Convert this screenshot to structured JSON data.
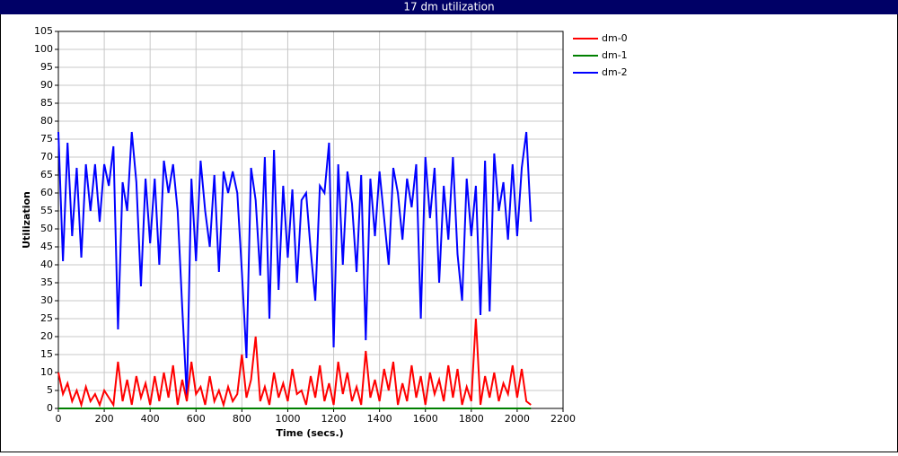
{
  "chart_data": {
    "type": "line",
    "title": "17 dm utilization",
    "x_label": "Time (secs.)",
    "y_label": "Utilization",
    "x": [
      0,
      20,
      40,
      60,
      80,
      100,
      120,
      140,
      160,
      180,
      200,
      220,
      240,
      260,
      280,
      300,
      320,
      340,
      360,
      380,
      400,
      420,
      440,
      460,
      480,
      500,
      520,
      540,
      560,
      580,
      600,
      620,
      640,
      660,
      680,
      700,
      720,
      740,
      760,
      780,
      800,
      820,
      840,
      860,
      880,
      900,
      920,
      940,
      960,
      980,
      1000,
      1020,
      1040,
      1060,
      1080,
      1100,
      1120,
      1140,
      1160,
      1180,
      1200,
      1220,
      1240,
      1260,
      1280,
      1300,
      1320,
      1340,
      1360,
      1380,
      1400,
      1420,
      1440,
      1460,
      1480,
      1500,
      1520,
      1540,
      1560,
      1580,
      1600,
      1620,
      1640,
      1660,
      1680,
      1700,
      1720,
      1740,
      1760,
      1780,
      1800,
      1820,
      1840,
      1860,
      1880,
      1900,
      1920,
      1940,
      1960,
      1980,
      2000,
      2020,
      2040,
      2060
    ],
    "series": [
      {
        "name": "dm-0",
        "color": "#ff0000",
        "values": [
          10,
          4,
          7,
          2,
          5,
          1,
          6,
          2,
          4,
          1,
          5,
          3,
          1,
          13,
          2,
          8,
          1,
          9,
          3,
          7,
          1,
          9,
          2,
          10,
          3,
          12,
          1,
          8,
          2,
          13,
          4,
          6,
          1,
          9,
          2,
          5,
          1,
          6,
          2,
          4,
          15,
          3,
          8,
          20,
          2,
          6,
          1,
          10,
          3,
          7,
          2,
          11,
          4,
          5,
          1,
          9,
          3,
          12,
          2,
          7,
          1,
          13,
          4,
          10,
          2,
          6,
          1,
          16,
          3,
          8,
          2,
          11,
          5,
          13,
          1,
          7,
          2,
          12,
          3,
          9,
          1,
          10,
          4,
          8,
          2,
          12,
          3,
          11,
          1,
          6,
          2,
          25,
          1,
          9,
          3,
          10,
          2,
          7,
          4,
          12,
          3,
          11,
          2,
          1
        ]
      },
      {
        "name": "dm-1",
        "color": "#008000",
        "values": [
          0,
          0,
          0,
          0,
          0,
          0,
          0,
          0,
          0,
          0,
          0,
          0,
          0,
          0,
          0,
          0,
          0,
          0,
          0,
          0,
          0,
          0,
          0,
          0,
          0,
          0,
          0,
          0,
          0,
          0,
          0,
          0,
          0,
          0,
          0,
          0,
          0,
          0,
          0,
          0,
          0,
          0,
          0,
          0,
          0,
          0,
          0,
          0,
          0,
          0,
          0,
          0,
          0,
          0,
          0,
          0,
          0,
          0,
          0,
          0,
          0,
          0,
          0,
          0,
          0,
          0,
          0,
          0,
          0,
          0,
          0,
          0,
          0,
          0,
          0,
          0,
          0,
          0,
          0,
          0,
          0,
          0,
          0,
          0,
          0,
          0,
          0,
          0,
          0,
          0,
          0,
          0,
          0,
          0,
          0,
          0,
          0,
          0,
          0,
          0,
          0,
          0,
          0,
          0
        ]
      },
      {
        "name": "dm-2",
        "color": "#0000ff",
        "values": [
          77,
          41,
          74,
          48,
          67,
          42,
          68,
          55,
          68,
          52,
          68,
          62,
          73,
          22,
          63,
          55,
          77,
          63,
          34,
          64,
          46,
          64,
          40,
          69,
          60,
          68,
          55,
          28,
          3,
          64,
          41,
          69,
          55,
          45,
          65,
          38,
          66,
          60,
          66,
          60,
          38,
          14,
          67,
          58,
          37,
          70,
          25,
          72,
          33,
          62,
          42,
          61,
          35,
          58,
          60,
          44,
          30,
          62,
          60,
          74,
          17,
          68,
          40,
          66,
          57,
          38,
          65,
          19,
          64,
          48,
          66,
          53,
          40,
          67,
          60,
          47,
          64,
          56,
          68,
          25,
          70,
          53,
          67,
          35,
          62,
          47,
          70,
          43,
          30,
          64,
          48,
          62,
          26,
          69,
          27,
          71,
          55,
          63,
          47,
          68,
          48,
          67,
          77,
          52
        ]
      }
    ],
    "xlim": [
      0,
      2200
    ],
    "ylim": [
      0,
      105
    ],
    "xticks": [
      0,
      200,
      400,
      600,
      800,
      1000,
      1200,
      1400,
      1600,
      1800,
      2000,
      2200
    ],
    "yticks": [
      0,
      5,
      10,
      15,
      20,
      25,
      30,
      35,
      40,
      45,
      50,
      55,
      60,
      65,
      70,
      75,
      80,
      85,
      90,
      95,
      100,
      105
    ],
    "grid": true,
    "legend": "right"
  }
}
